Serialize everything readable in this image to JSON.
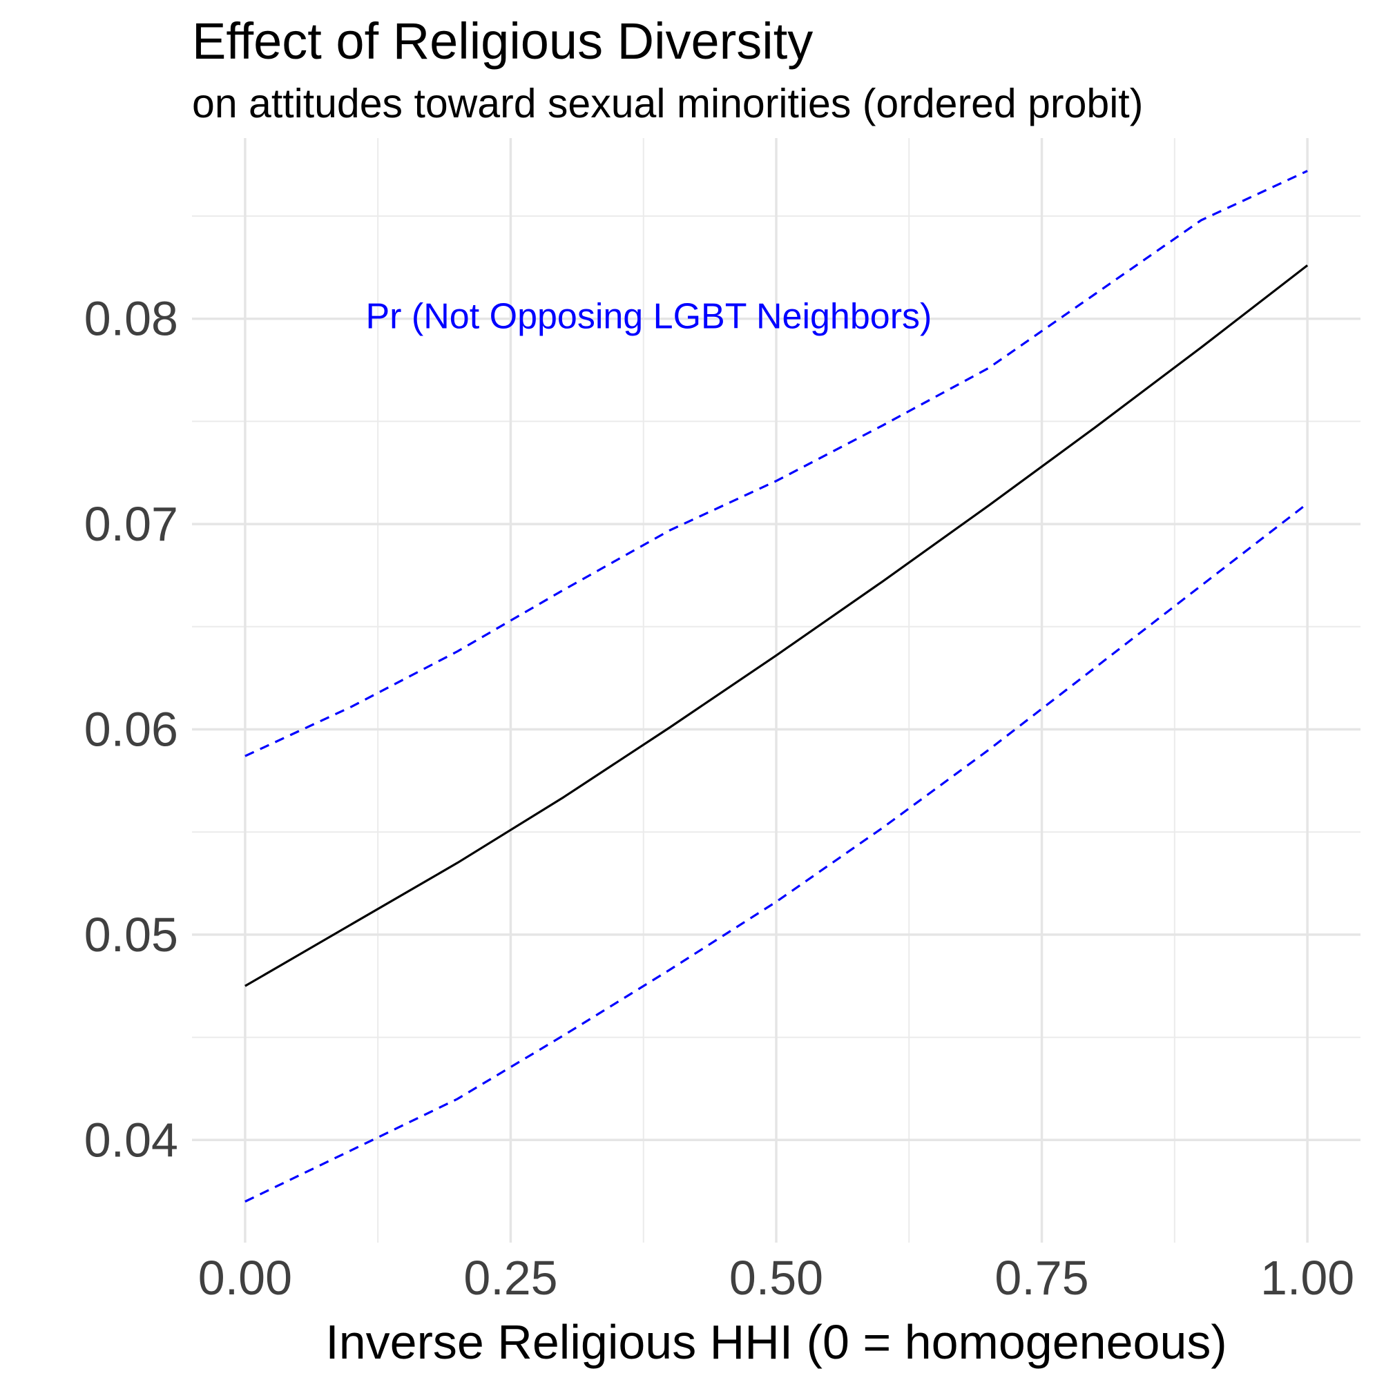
{
  "chart_data": {
    "type": "line",
    "title": "Effect of Religious Diversity",
    "subtitle": "on attitudes toward sexual minorities (ordered probit)",
    "xlabel": "Inverse Religious HHI (0 = homogeneous)",
    "ylabel": "",
    "xlim": [
      -0.05,
      1.05
    ],
    "ylim": [
      0.035,
      0.0888
    ],
    "x_ticks": [
      0,
      0.25,
      0.5,
      0.75,
      1
    ],
    "x_tick_labels": [
      "0.00",
      "0.25",
      "0.50",
      "0.75",
      "1.00"
    ],
    "y_ticks": [
      0.04,
      0.05,
      0.06,
      0.07,
      0.08
    ],
    "y_tick_labels": [
      "0.04",
      "0.05",
      "0.06",
      "0.07",
      "0.08"
    ],
    "grid": true,
    "legend": "none",
    "annotations": [
      {
        "text": "Pr (Not Opposing LGBT Neighbors)",
        "x": 0.38,
        "y": 0.08,
        "color": "#0000ff"
      }
    ],
    "series": [
      {
        "role": "estimate",
        "color": "#000000",
        "linestyle": "solid",
        "x": [
          0,
          0.1,
          0.2,
          0.3,
          0.4,
          0.5,
          0.6,
          0.7,
          0.8,
          0.9,
          1.0
        ],
        "y": [
          0.0475,
          0.0505,
          0.0535,
          0.0567,
          0.0601,
          0.0636,
          0.0672,
          0.0709,
          0.0747,
          0.0786,
          0.0826
        ]
      },
      {
        "role": "upper-bound",
        "color": "#0000ff",
        "linestyle": "dashed",
        "x": [
          0,
          0.1,
          0.2,
          0.3,
          0.4,
          0.5,
          0.6,
          0.7,
          0.8,
          0.9,
          1.0
        ],
        "y": [
          0.0587,
          0.0611,
          0.0638,
          0.0668,
          0.0697,
          0.0721,
          0.0748,
          0.0776,
          0.0812,
          0.0848,
          0.0872
        ]
      },
      {
        "role": "lower-bound",
        "color": "#0000ff",
        "linestyle": "dashed",
        "x": [
          0,
          0.1,
          0.2,
          0.3,
          0.4,
          0.5,
          0.6,
          0.7,
          0.8,
          0.9,
          1.0
        ],
        "y": [
          0.037,
          0.0395,
          0.042,
          0.0451,
          0.0483,
          0.0516,
          0.0552,
          0.059,
          0.063,
          0.067,
          0.071
        ]
      }
    ]
  }
}
